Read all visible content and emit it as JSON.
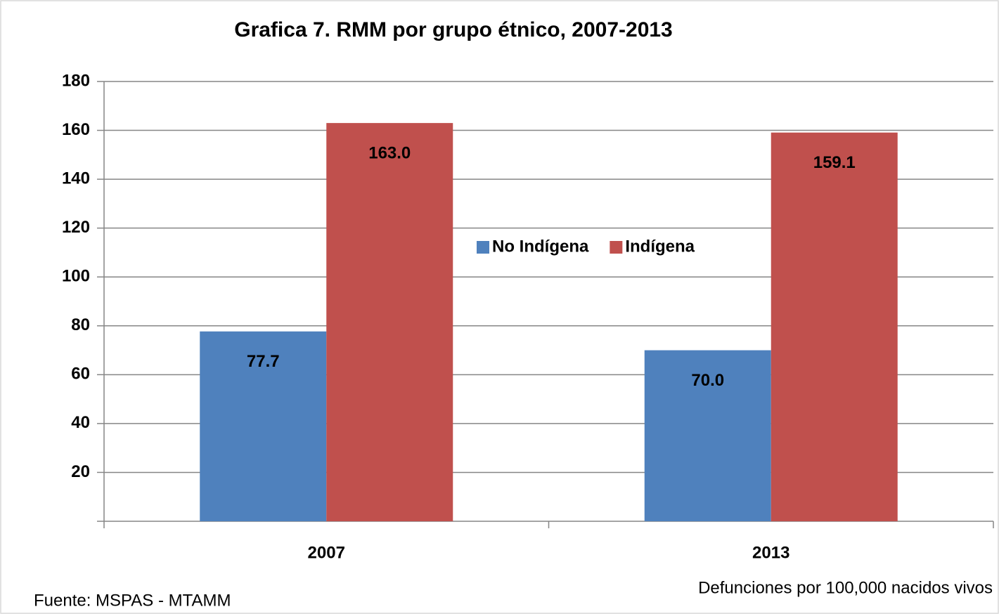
{
  "chart_data": {
    "type": "bar",
    "title": "Grafica 7.  RMM por grupo étnico, 2007-2013",
    "categories": [
      "2007",
      "2013"
    ],
    "series": [
      {
        "name": "No Indígena",
        "color": "#4f81bd",
        "values": [
          77.7,
          70.0
        ],
        "value_labels": [
          "77.7",
          "70.0"
        ]
      },
      {
        "name": "Indígena",
        "color": "#c0504d",
        "values": [
          163.0,
          159.1
        ],
        "value_labels": [
          "163.0",
          "159.1"
        ]
      }
    ],
    "ylim": [
      0,
      180
    ],
    "yticks": [
      20,
      40,
      60,
      80,
      100,
      120,
      140,
      160,
      180
    ],
    "grid": true,
    "legend": "center",
    "source": "Fuente: MSPAS - MTAMM",
    "unit_note": "Defunciones por 100,000  nacidos vivos"
  }
}
